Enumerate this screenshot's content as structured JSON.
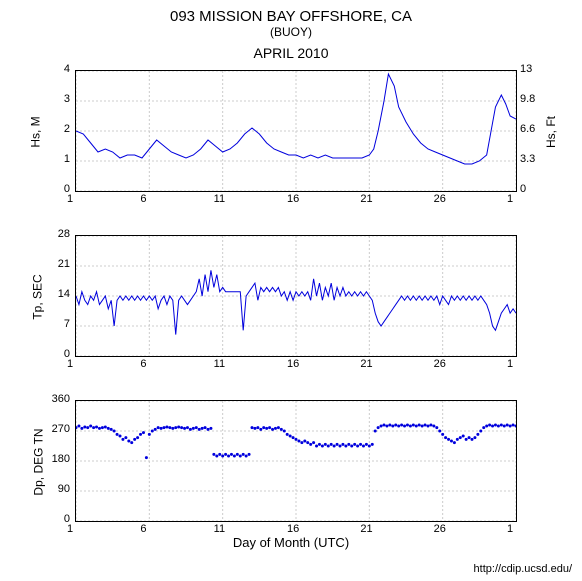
{
  "title": "093 MISSION BAY OFFSHORE, CA",
  "subtitle": "(BUOY)",
  "month": "APRIL 2010",
  "xaxis_label": "Day of Month (UTC)",
  "credit": "http://cdip.ucsd.edu/",
  "colors": {
    "line": "#0000dd",
    "grid": "#cccccc",
    "background": "#ffffff",
    "text": "#000000"
  },
  "x_ticks": [
    1,
    6,
    11,
    16,
    21,
    26,
    1
  ],
  "x_domain": [
    1,
    31
  ],
  "chart1": {
    "ylabel_left": "Hs, M",
    "ylabel_right": "Hs, Ft",
    "ylim": [
      0,
      4
    ],
    "yticks_left": [
      0,
      1,
      2,
      3,
      4
    ],
    "yticks_right": [
      0,
      3.3,
      6.6,
      9.8,
      13
    ],
    "type": "line",
    "data": [
      [
        1,
        2.0
      ],
      [
        1.5,
        1.9
      ],
      [
        2,
        1.6
      ],
      [
        2.5,
        1.3
      ],
      [
        3,
        1.4
      ],
      [
        3.5,
        1.3
      ],
      [
        4,
        1.1
      ],
      [
        4.5,
        1.2
      ],
      [
        5,
        1.2
      ],
      [
        5.5,
        1.1
      ],
      [
        6,
        1.4
      ],
      [
        6.5,
        1.7
      ],
      [
        7,
        1.5
      ],
      [
        7.5,
        1.3
      ],
      [
        8,
        1.2
      ],
      [
        8.5,
        1.1
      ],
      [
        9,
        1.2
      ],
      [
        9.5,
        1.4
      ],
      [
        10,
        1.7
      ],
      [
        10.5,
        1.5
      ],
      [
        11,
        1.3
      ],
      [
        11.5,
        1.4
      ],
      [
        12,
        1.6
      ],
      [
        12.5,
        1.9
      ],
      [
        13,
        2.1
      ],
      [
        13.5,
        1.9
      ],
      [
        14,
        1.6
      ],
      [
        14.5,
        1.4
      ],
      [
        15,
        1.3
      ],
      [
        15.5,
        1.2
      ],
      [
        16,
        1.2
      ],
      [
        16.5,
        1.1
      ],
      [
        17,
        1.2
      ],
      [
        17.5,
        1.1
      ],
      [
        18,
        1.2
      ],
      [
        18.5,
        1.1
      ],
      [
        19,
        1.1
      ],
      [
        19.5,
        1.1
      ],
      [
        20,
        1.1
      ],
      [
        20.5,
        1.1
      ],
      [
        21,
        1.2
      ],
      [
        21.3,
        1.4
      ],
      [
        21.6,
        2.0
      ],
      [
        22,
        3.0
      ],
      [
        22.3,
        3.9
      ],
      [
        22.7,
        3.5
      ],
      [
        23,
        2.8
      ],
      [
        23.5,
        2.3
      ],
      [
        24,
        1.9
      ],
      [
        24.5,
        1.6
      ],
      [
        25,
        1.4
      ],
      [
        25.5,
        1.3
      ],
      [
        26,
        1.2
      ],
      [
        26.5,
        1.1
      ],
      [
        27,
        1.0
      ],
      [
        27.5,
        0.9
      ],
      [
        28,
        0.9
      ],
      [
        28.5,
        1.0
      ],
      [
        29,
        1.2
      ],
      [
        29.3,
        2.0
      ],
      [
        29.6,
        2.8
      ],
      [
        30,
        3.2
      ],
      [
        30.3,
        2.9
      ],
      [
        30.6,
        2.5
      ],
      [
        31,
        2.4
      ]
    ]
  },
  "chart2": {
    "ylabel_left": "Tp, SEC",
    "ylim": [
      0,
      28
    ],
    "yticks_left": [
      0,
      7,
      14,
      21,
      28
    ],
    "type": "line",
    "data": [
      [
        1,
        14
      ],
      [
        1.2,
        12
      ],
      [
        1.4,
        15
      ],
      [
        1.6,
        13
      ],
      [
        1.8,
        12
      ],
      [
        2,
        14
      ],
      [
        2.2,
        13
      ],
      [
        2.4,
        15
      ],
      [
        2.6,
        12
      ],
      [
        2.8,
        13
      ],
      [
        3,
        14
      ],
      [
        3.2,
        11
      ],
      [
        3.4,
        13
      ],
      [
        3.6,
        7
      ],
      [
        3.8,
        13
      ],
      [
        4,
        14
      ],
      [
        4.2,
        13
      ],
      [
        4.4,
        14
      ],
      [
        4.6,
        13
      ],
      [
        4.8,
        14
      ],
      [
        5,
        13
      ],
      [
        5.2,
        14
      ],
      [
        5.4,
        13
      ],
      [
        5.6,
        14
      ],
      [
        5.8,
        13
      ],
      [
        6,
        14
      ],
      [
        6.2,
        13
      ],
      [
        6.4,
        14
      ],
      [
        6.6,
        11
      ],
      [
        6.8,
        13
      ],
      [
        7,
        14
      ],
      [
        7.2,
        12
      ],
      [
        7.4,
        14
      ],
      [
        7.6,
        13
      ],
      [
        7.8,
        5
      ],
      [
        8,
        13
      ],
      [
        8.2,
        14
      ],
      [
        8.4,
        13
      ],
      [
        8.6,
        12
      ],
      [
        8.8,
        13
      ],
      [
        9,
        14
      ],
      [
        9.2,
        15
      ],
      [
        9.4,
        18
      ],
      [
        9.6,
        14
      ],
      [
        9.8,
        19
      ],
      [
        10,
        15
      ],
      [
        10.2,
        20
      ],
      [
        10.4,
        16
      ],
      [
        10.6,
        19
      ],
      [
        10.8,
        15
      ],
      [
        11,
        16
      ],
      [
        11.2,
        15
      ],
      [
        11.4,
        15
      ],
      [
        11.6,
        15
      ],
      [
        11.8,
        15
      ],
      [
        12,
        15
      ],
      [
        12.2,
        15
      ],
      [
        12.4,
        6
      ],
      [
        12.6,
        14
      ],
      [
        12.8,
        15
      ],
      [
        13,
        16
      ],
      [
        13.2,
        17
      ],
      [
        13.4,
        13
      ],
      [
        13.6,
        16
      ],
      [
        13.8,
        15
      ],
      [
        14,
        16
      ],
      [
        14.2,
        15
      ],
      [
        14.4,
        16
      ],
      [
        14.6,
        15
      ],
      [
        14.8,
        16
      ],
      [
        15,
        14
      ],
      [
        15.2,
        15
      ],
      [
        15.4,
        13
      ],
      [
        15.6,
        15
      ],
      [
        15.8,
        13
      ],
      [
        16,
        15
      ],
      [
        16.2,
        14
      ],
      [
        16.4,
        15
      ],
      [
        16.6,
        14
      ],
      [
        16.8,
        15
      ],
      [
        17,
        13
      ],
      [
        17.2,
        18
      ],
      [
        17.4,
        14
      ],
      [
        17.6,
        17
      ],
      [
        17.8,
        13
      ],
      [
        18,
        16
      ],
      [
        18.2,
        14
      ],
      [
        18.4,
        17
      ],
      [
        18.6,
        13
      ],
      [
        18.8,
        16
      ],
      [
        19,
        14
      ],
      [
        19.2,
        16
      ],
      [
        19.4,
        14
      ],
      [
        19.6,
        15
      ],
      [
        19.8,
        14
      ],
      [
        20,
        15
      ],
      [
        20.2,
        14
      ],
      [
        20.4,
        15
      ],
      [
        20.6,
        14
      ],
      [
        20.8,
        15
      ],
      [
        21,
        14
      ],
      [
        21.2,
        13
      ],
      [
        21.4,
        10
      ],
      [
        21.6,
        8
      ],
      [
        21.8,
        7
      ],
      [
        22,
        8
      ],
      [
        22.2,
        9
      ],
      [
        22.4,
        10
      ],
      [
        22.6,
        11
      ],
      [
        22.8,
        12
      ],
      [
        23,
        13
      ],
      [
        23.2,
        14
      ],
      [
        23.4,
        13
      ],
      [
        23.6,
        14
      ],
      [
        23.8,
        13
      ],
      [
        24,
        14
      ],
      [
        24.2,
        13
      ],
      [
        24.4,
        14
      ],
      [
        24.6,
        13
      ],
      [
        24.8,
        14
      ],
      [
        25,
        13
      ],
      [
        25.2,
        14
      ],
      [
        25.4,
        13
      ],
      [
        25.6,
        14
      ],
      [
        25.8,
        12
      ],
      [
        26,
        14
      ],
      [
        26.2,
        13
      ],
      [
        26.4,
        12
      ],
      [
        26.6,
        14
      ],
      [
        26.8,
        13
      ],
      [
        27,
        14
      ],
      [
        27.2,
        13
      ],
      [
        27.4,
        14
      ],
      [
        27.6,
        13
      ],
      [
        27.8,
        14
      ],
      [
        28,
        13
      ],
      [
        28.2,
        14
      ],
      [
        28.4,
        13
      ],
      [
        28.6,
        14
      ],
      [
        28.8,
        13
      ],
      [
        29,
        12
      ],
      [
        29.2,
        10
      ],
      [
        29.4,
        7
      ],
      [
        29.6,
        6
      ],
      [
        29.8,
        8
      ],
      [
        30,
        10
      ],
      [
        30.2,
        11
      ],
      [
        30.4,
        12
      ],
      [
        30.6,
        10
      ],
      [
        30.8,
        11
      ],
      [
        31,
        10
      ]
    ]
  },
  "chart3": {
    "ylabel_left": "Dp, DEG TN",
    "ylim": [
      0,
      360
    ],
    "yticks_left": [
      0,
      90,
      180,
      270,
      360
    ],
    "type": "scatter",
    "data": [
      [
        1,
        280
      ],
      [
        1.2,
        285
      ],
      [
        1.4,
        278
      ],
      [
        1.6,
        282
      ],
      [
        1.8,
        280
      ],
      [
        2,
        285
      ],
      [
        2.2,
        280
      ],
      [
        2.4,
        282
      ],
      [
        2.6,
        278
      ],
      [
        2.8,
        280
      ],
      [
        3,
        282
      ],
      [
        3.2,
        278
      ],
      [
        3.4,
        275
      ],
      [
        3.6,
        270
      ],
      [
        3.8,
        260
      ],
      [
        4,
        255
      ],
      [
        4.2,
        245
      ],
      [
        4.4,
        250
      ],
      [
        4.6,
        240
      ],
      [
        4.8,
        235
      ],
      [
        5,
        245
      ],
      [
        5.2,
        250
      ],
      [
        5.4,
        260
      ],
      [
        5.6,
        265
      ],
      [
        5.8,
        190
      ],
      [
        6,
        260
      ],
      [
        6.2,
        270
      ],
      [
        6.4,
        275
      ],
      [
        6.6,
        280
      ],
      [
        6.8,
        278
      ],
      [
        7,
        280
      ],
      [
        7.2,
        282
      ],
      [
        7.4,
        280
      ],
      [
        7.6,
        278
      ],
      [
        7.8,
        280
      ],
      [
        8,
        282
      ],
      [
        8.2,
        280
      ],
      [
        8.4,
        278
      ],
      [
        8.6,
        280
      ],
      [
        8.8,
        275
      ],
      [
        9,
        278
      ],
      [
        9.2,
        280
      ],
      [
        9.4,
        275
      ],
      [
        9.6,
        278
      ],
      [
        9.8,
        280
      ],
      [
        10,
        275
      ],
      [
        10.2,
        278
      ],
      [
        10.4,
        200
      ],
      [
        10.6,
        195
      ],
      [
        10.8,
        200
      ],
      [
        11,
        195
      ],
      [
        11.2,
        200
      ],
      [
        11.4,
        195
      ],
      [
        11.6,
        200
      ],
      [
        11.8,
        195
      ],
      [
        12,
        200
      ],
      [
        12.2,
        195
      ],
      [
        12.4,
        200
      ],
      [
        12.6,
        195
      ],
      [
        12.8,
        200
      ],
      [
        13,
        280
      ],
      [
        13.2,
        278
      ],
      [
        13.4,
        280
      ],
      [
        13.6,
        275
      ],
      [
        13.8,
        280
      ],
      [
        14,
        278
      ],
      [
        14.2,
        280
      ],
      [
        14.4,
        275
      ],
      [
        14.6,
        278
      ],
      [
        14.8,
        280
      ],
      [
        15,
        275
      ],
      [
        15.2,
        270
      ],
      [
        15.4,
        260
      ],
      [
        15.6,
        255
      ],
      [
        15.8,
        250
      ],
      [
        16,
        245
      ],
      [
        16.2,
        240
      ],
      [
        16.4,
        235
      ],
      [
        16.6,
        240
      ],
      [
        16.8,
        235
      ],
      [
        17,
        230
      ],
      [
        17.2,
        235
      ],
      [
        17.4,
        225
      ],
      [
        17.6,
        230
      ],
      [
        17.8,
        225
      ],
      [
        18,
        230
      ],
      [
        18.2,
        225
      ],
      [
        18.4,
        230
      ],
      [
        18.6,
        225
      ],
      [
        18.8,
        230
      ],
      [
        19,
        225
      ],
      [
        19.2,
        230
      ],
      [
        19.4,
        225
      ],
      [
        19.6,
        230
      ],
      [
        19.8,
        225
      ],
      [
        20,
        230
      ],
      [
        20.2,
        225
      ],
      [
        20.4,
        230
      ],
      [
        20.6,
        225
      ],
      [
        20.8,
        230
      ],
      [
        21,
        225
      ],
      [
        21.2,
        230
      ],
      [
        21.4,
        270
      ],
      [
        21.6,
        280
      ],
      [
        21.8,
        285
      ],
      [
        22,
        288
      ],
      [
        22.2,
        285
      ],
      [
        22.4,
        288
      ],
      [
        22.6,
        285
      ],
      [
        22.8,
        288
      ],
      [
        23,
        285
      ],
      [
        23.2,
        288
      ],
      [
        23.4,
        285
      ],
      [
        23.6,
        288
      ],
      [
        23.8,
        285
      ],
      [
        24,
        288
      ],
      [
        24.2,
        285
      ],
      [
        24.4,
        288
      ],
      [
        24.6,
        285
      ],
      [
        24.8,
        288
      ],
      [
        25,
        285
      ],
      [
        25.2,
        288
      ],
      [
        25.4,
        285
      ],
      [
        25.6,
        280
      ],
      [
        25.8,
        270
      ],
      [
        26,
        260
      ],
      [
        26.2,
        250
      ],
      [
        26.4,
        245
      ],
      [
        26.6,
        240
      ],
      [
        26.8,
        235
      ],
      [
        27,
        245
      ],
      [
        27.2,
        250
      ],
      [
        27.4,
        255
      ],
      [
        27.6,
        245
      ],
      [
        27.8,
        250
      ],
      [
        28,
        245
      ],
      [
        28.2,
        250
      ],
      [
        28.4,
        260
      ],
      [
        28.6,
        270
      ],
      [
        28.8,
        280
      ],
      [
        29,
        285
      ],
      [
        29.2,
        288
      ],
      [
        29.4,
        285
      ],
      [
        29.6,
        288
      ],
      [
        29.8,
        285
      ],
      [
        30,
        288
      ],
      [
        30.2,
        285
      ],
      [
        30.4,
        288
      ],
      [
        30.6,
        285
      ],
      [
        30.8,
        288
      ],
      [
        31,
        285
      ]
    ]
  }
}
